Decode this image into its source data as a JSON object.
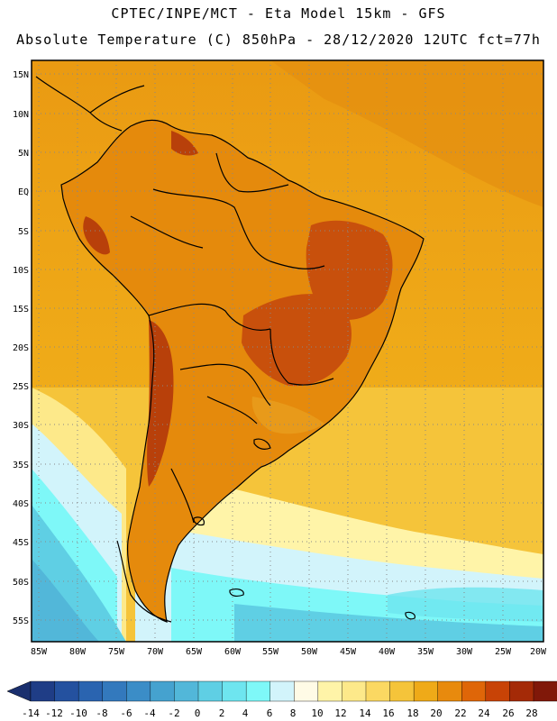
{
  "header": {
    "line1": "CPTEC/INPE/MCT -  Eta Model 15km - GFS",
    "line2": "Absolute Temperature (C) 850hPa - 28/12/2020 12UTC fct=77h"
  },
  "map": {
    "lat_labels": [
      "15N",
      "10N",
      "5N",
      "EQ",
      "5S",
      "10S",
      "15S",
      "20S",
      "25S",
      "30S",
      "35S",
      "40S",
      "45S",
      "50S",
      "55S"
    ],
    "lon_labels": [
      "85W",
      "80W",
      "75W",
      "70W",
      "65W",
      "60W",
      "55W",
      "50W",
      "45W",
      "40W",
      "35W",
      "30W",
      "25W",
      "20W"
    ],
    "border_color": "#000000",
    "grid_color": "#888888"
  },
  "colorbar": {
    "labels": [
      "-14",
      "-12",
      "-10",
      "-8",
      "-6",
      "-4",
      "-2",
      "0",
      "2",
      "4",
      "6",
      "8",
      "10",
      "12",
      "14",
      "16",
      "18",
      "20",
      "22",
      "24",
      "26",
      "28"
    ],
    "under_color": "#1a2f6e",
    "over_color": "#6e0a14",
    "colors": [
      "#1f3d86",
      "#24519f",
      "#2a64b0",
      "#3379bd",
      "#3b8dc7",
      "#45a2cf",
      "#52b7d9",
      "#5fcfe4",
      "#6ee5ef",
      "#7ef8f8",
      "#d2f4fb",
      "#fffbe6",
      "#fff4a8",
      "#fde98a",
      "#fbd862",
      "#f5c43a",
      "#efaa18",
      "#e88a0d",
      "#df6608",
      "#c84306",
      "#a42a07",
      "#801809",
      "#6e0a14"
    ]
  }
}
